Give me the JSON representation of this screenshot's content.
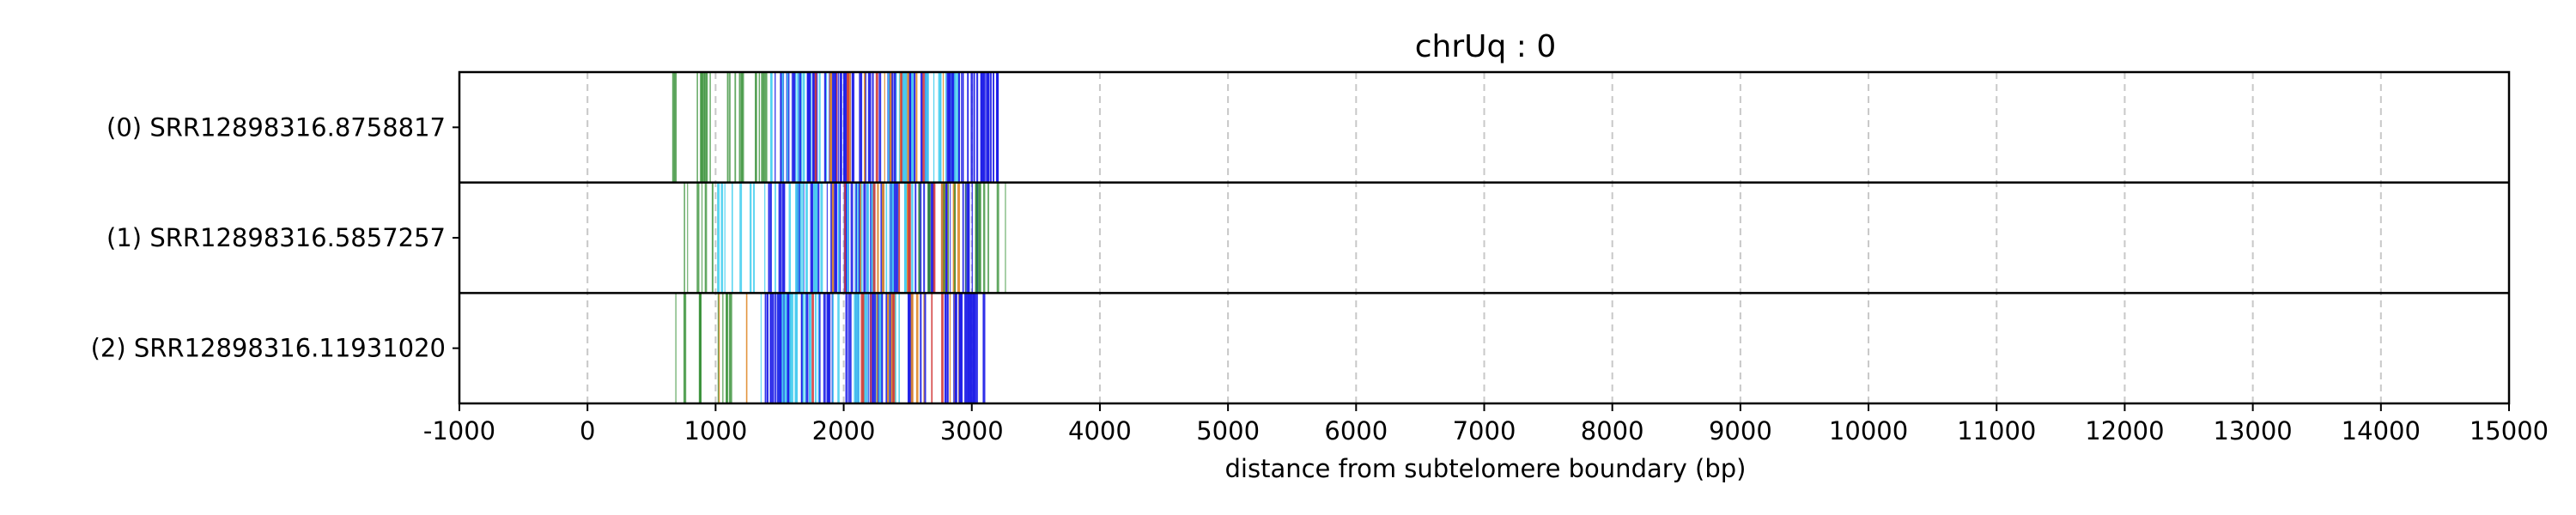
{
  "chart_data": {
    "type": "read-track",
    "title": "chrUq : 0",
    "xlabel": "distance from subtelomere boundary (bp)",
    "xlim": [
      -1000,
      15000
    ],
    "xticks": [
      -1000,
      0,
      1000,
      2000,
      3000,
      4000,
      5000,
      6000,
      7000,
      8000,
      9000,
      10000,
      11000,
      12000,
      13000,
      14000,
      15000
    ],
    "xtick_labels": [
      "-1000",
      "0",
      "1000",
      "2000",
      "3000",
      "4000",
      "5000",
      "6000",
      "7000",
      "8000",
      "9000",
      "10000",
      "11000",
      "12000",
      "13000",
      "14000",
      "15000"
    ],
    "grid": "x-dashed",
    "colors": {
      "green": "#2e8b2e",
      "blue": "#1f1fe8",
      "cyan": "#4ad0f0",
      "orange": "#e08a2a",
      "red": "#d23c3c",
      "purple": "#7a3cc8",
      "grid": "#c8c8c8",
      "frame": "#000000"
    },
    "reads": [
      {
        "label": "(0) SRR12898316.8758817",
        "end": 3200,
        "segments": [
          {
            "start": 580,
            "end": 1050,
            "color": "green",
            "density": 0.25
          },
          {
            "start": 1050,
            "end": 1400,
            "color": "green",
            "density": 0.45
          },
          {
            "start": 1380,
            "end": 1700,
            "color": "blue",
            "density": 0.45
          },
          {
            "start": 1420,
            "end": 1900,
            "color": "cyan",
            "density": 0.35
          },
          {
            "start": 1600,
            "end": 2900,
            "color": "blue",
            "density": 0.65
          },
          {
            "start": 1700,
            "end": 2800,
            "color": "orange",
            "density": 0.12
          },
          {
            "start": 1750,
            "end": 2700,
            "color": "red",
            "density": 0.08
          },
          {
            "start": 2300,
            "end": 3000,
            "color": "cyan",
            "density": 0.35
          },
          {
            "start": 2800,
            "end": 3200,
            "color": "blue",
            "density": 0.95
          }
        ]
      },
      {
        "label": "(1) SRR12898316.5857257",
        "end": 3150,
        "segments": [
          {
            "start": 600,
            "end": 1000,
            "color": "green",
            "density": 0.2
          },
          {
            "start": 1000,
            "end": 1450,
            "color": "cyan",
            "density": 0.3
          },
          {
            "start": 1400,
            "end": 3100,
            "color": "blue",
            "density": 0.6
          },
          {
            "start": 1450,
            "end": 2600,
            "color": "cyan",
            "density": 0.35
          },
          {
            "start": 1700,
            "end": 2900,
            "color": "orange",
            "density": 0.12
          },
          {
            "start": 1800,
            "end": 2800,
            "color": "red",
            "density": 0.08
          },
          {
            "start": 2500,
            "end": 3100,
            "color": "green",
            "density": 0.2
          },
          {
            "start": 3000,
            "end": 3280,
            "color": "green",
            "density": 0.3
          }
        ]
      },
      {
        "label": "(2) SRR12898316.11931020",
        "end": 3100,
        "segments": [
          {
            "start": 540,
            "end": 1150,
            "color": "green",
            "density": 0.25
          },
          {
            "start": 1000,
            "end": 1300,
            "color": "orange",
            "density": 0.1
          },
          {
            "start": 1280,
            "end": 1600,
            "color": "cyan",
            "density": 0.4
          },
          {
            "start": 1380,
            "end": 3050,
            "color": "blue",
            "density": 0.6
          },
          {
            "start": 1500,
            "end": 2500,
            "color": "cyan",
            "density": 0.35
          },
          {
            "start": 1600,
            "end": 2900,
            "color": "orange",
            "density": 0.12
          },
          {
            "start": 1700,
            "end": 2800,
            "color": "red",
            "density": 0.08
          },
          {
            "start": 2850,
            "end": 3100,
            "color": "blue",
            "density": 0.95
          }
        ]
      }
    ]
  }
}
